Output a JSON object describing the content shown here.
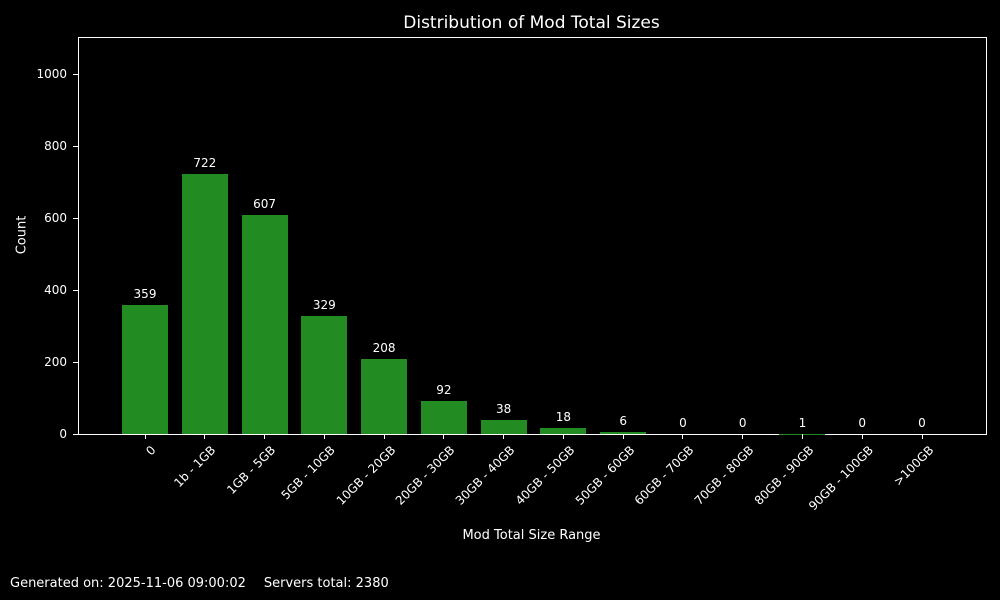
{
  "title": "Distribution of Mod Total Sizes",
  "footer": {
    "generated": "Generated on: 2025-11-06 09:00:02",
    "servers_total": "Servers total: 2380"
  },
  "colors": {
    "background": "#000000",
    "bar": "#228B22",
    "text": "#ffffff",
    "axis": "#ffffff"
  },
  "chart_data": {
    "type": "bar",
    "title": "Distribution of Mod Total Sizes",
    "xlabel": "Mod Total Size Range",
    "ylabel": "Count",
    "categories": [
      "0",
      "1b - 1GB",
      "1GB - 5GB",
      "5GB - 10GB",
      "10GB - 20GB",
      "20GB - 30GB",
      "30GB - 40GB",
      "40GB - 50GB",
      "50GB - 60GB",
      "60GB - 70GB",
      "70GB - 80GB",
      "80GB - 90GB",
      "90GB - 100GB",
      ">100GB"
    ],
    "values": [
      359,
      722,
      607,
      329,
      208,
      92,
      38,
      18,
      6,
      0,
      0,
      1,
      0,
      0
    ],
    "yticks": [
      0,
      200,
      400,
      600,
      800,
      1000
    ],
    "ylim": [
      0,
      1100
    ],
    "grid": false,
    "bar_labels": true,
    "legend": null
  }
}
